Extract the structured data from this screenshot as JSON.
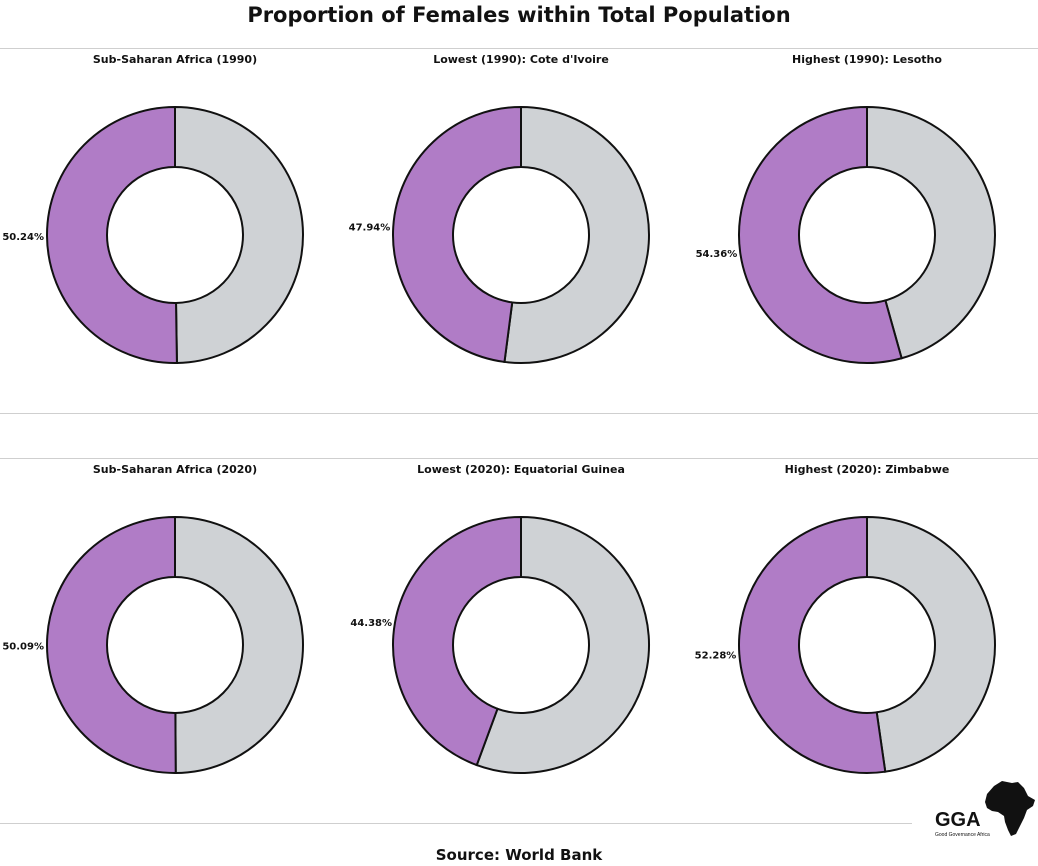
{
  "title": "Proportion of Females within Total Population",
  "source": "Source: World Bank",
  "logo": {
    "text": "GGA",
    "subtext": "Good Governance Africa"
  },
  "colors": {
    "female": "#b07cc6",
    "male": "#cfd2d5",
    "stroke": "#111111"
  },
  "chart_data": [
    {
      "type": "pie",
      "title": "Sub-Saharan Africa (1990)",
      "female_pct": 50.24,
      "label": "50.24%"
    },
    {
      "type": "pie",
      "title": "Lowest (1990): Cote d'Ivoire",
      "female_pct": 47.94,
      "label": "47.94%"
    },
    {
      "type": "pie",
      "title": "Highest (1990): Lesotho",
      "female_pct": 54.36,
      "label": "54.36%"
    },
    {
      "type": "pie",
      "title": "Sub-Saharan Africa (2020)",
      "female_pct": 50.09,
      "label": "50.09%"
    },
    {
      "type": "pie",
      "title": "Lowest (2020): Equatorial Guinea",
      "female_pct": 44.38,
      "label": "44.38%"
    },
    {
      "type": "pie",
      "title": "Highest (2020): Zimbabwe",
      "female_pct": 52.28,
      "label": "52.28%"
    }
  ]
}
